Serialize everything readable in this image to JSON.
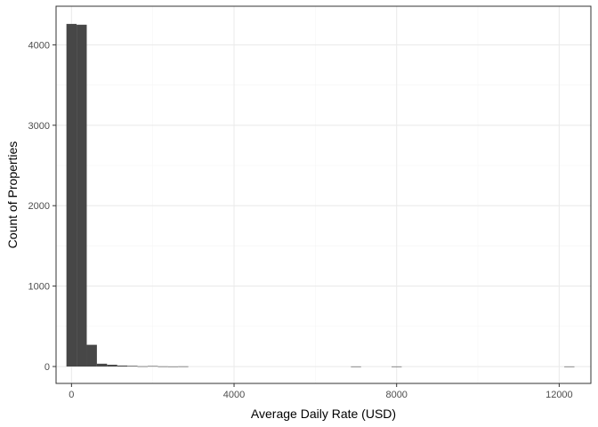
{
  "chart_data": {
    "type": "bar",
    "subtype": "histogram",
    "title": "",
    "xlabel": "Average Daily Rate (USD)",
    "ylabel": "Count of Properties",
    "xlim": [
      -380,
      12780
    ],
    "ylim": [
      -210,
      4480
    ],
    "x_ticks": [
      0,
      4000,
      8000,
      12000
    ],
    "x_tick_labels": [
      "0",
      "4000",
      "8000",
      "12000"
    ],
    "y_ticks": [
      0,
      1000,
      2000,
      3000,
      4000
    ],
    "y_tick_labels": [
      "0",
      "1000",
      "2000",
      "3000",
      "4000"
    ],
    "bin_width": 250,
    "bins": [
      {
        "start": -125,
        "end": 125,
        "count": 4260
      },
      {
        "start": 125,
        "end": 375,
        "count": 4250
      },
      {
        "start": 375,
        "end": 625,
        "count": 270
      },
      {
        "start": 625,
        "end": 875,
        "count": 35
      },
      {
        "start": 875,
        "end": 1125,
        "count": 22
      },
      {
        "start": 1125,
        "end": 1375,
        "count": 12
      },
      {
        "start": 1375,
        "end": 1625,
        "count": 8
      },
      {
        "start": 1625,
        "end": 1875,
        "count": 3
      },
      {
        "start": 1875,
        "end": 2125,
        "count": 6
      },
      {
        "start": 2125,
        "end": 2375,
        "count": 2
      },
      {
        "start": 2375,
        "end": 2625,
        "count": 1
      },
      {
        "start": 2625,
        "end": 2875,
        "count": 2
      },
      {
        "start": 6875,
        "end": 7125,
        "count": 1
      },
      {
        "start": 7875,
        "end": 8125,
        "count": 1
      },
      {
        "start": 12125,
        "end": 12375,
        "count": 1
      }
    ],
    "bar_color": "#474747",
    "panel_border_color": "#333333",
    "grid": true,
    "grid_major_color": "#ebebeb",
    "grid_minor_color": "#f5f5f5",
    "legend": "none"
  }
}
